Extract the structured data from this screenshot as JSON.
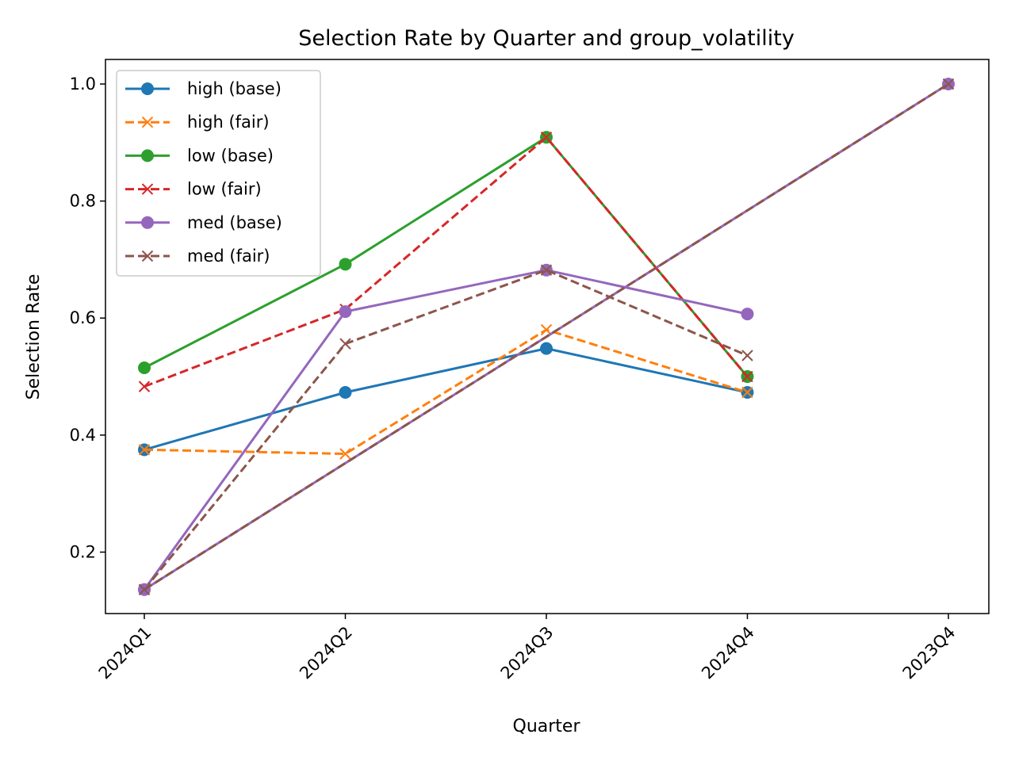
{
  "chart_data": {
    "type": "line",
    "title": "Selection Rate by Quarter and group_volatility",
    "xlabel": "Quarter",
    "ylabel": "Selection Rate",
    "categories": [
      "2024Q1",
      "2024Q2",
      "2024Q3",
      "2024Q4",
      "2023Q4"
    ],
    "y_ticks": [
      "0.2",
      "0.4",
      "0.6",
      "0.8",
      "1.0"
    ],
    "ylim": [
      0.095,
      1.042
    ],
    "grid": false,
    "legend_position": "top-left",
    "series": [
      {
        "name": "high (base)",
        "color": "#1f77b4",
        "marker": "circle",
        "dash": "solid",
        "points": [
          [
            0,
            0.375
          ],
          [
            1,
            0.473
          ],
          [
            2,
            0.548
          ],
          [
            3,
            0.473
          ]
        ]
      },
      {
        "name": "high (fair)",
        "color": "#ff7f0e",
        "marker": "x",
        "dash": "dashed",
        "points": [
          [
            0,
            0.375
          ],
          [
            1,
            0.368
          ],
          [
            2,
            0.58
          ],
          [
            3,
            0.473
          ]
        ]
      },
      {
        "name": "low (base)",
        "color": "#2ca02c",
        "marker": "circle",
        "dash": "solid",
        "points": [
          [
            0,
            0.515
          ],
          [
            1,
            0.692
          ],
          [
            2,
            0.909
          ],
          [
            3,
            0.5
          ]
        ]
      },
      {
        "name": "low (fair)",
        "color": "#d62728",
        "marker": "x",
        "dash": "dashed",
        "points": [
          [
            0,
            0.483
          ],
          [
            1,
            0.615
          ],
          [
            2,
            0.909
          ],
          [
            3,
            0.5
          ]
        ]
      },
      {
        "name": "med (base)",
        "color": "#9467bd",
        "marker": "circle",
        "dash": "solid",
        "points": [
          [
            0,
            0.136
          ],
          [
            1,
            0.611
          ],
          [
            2,
            0.682
          ],
          [
            3,
            0.607
          ]
        ]
      },
      {
        "name": "med (fair)",
        "color": "#8c564b",
        "marker": "x",
        "dash": "dashed",
        "points": [
          [
            0,
            0.136
          ],
          [
            1,
            0.556
          ],
          [
            2,
            0.682
          ],
          [
            3,
            0.536
          ]
        ]
      }
    ],
    "unlabeled_lines": [
      {
        "color": "#9467bd",
        "dash": "solid",
        "marker": "circle",
        "points": [
          [
            0,
            0.136
          ],
          [
            4,
            1.0
          ]
        ]
      },
      {
        "color": "#8c564b",
        "dash": "dashed",
        "marker": "x",
        "points": [
          [
            0,
            0.136
          ],
          [
            4,
            1.0
          ]
        ]
      }
    ]
  }
}
